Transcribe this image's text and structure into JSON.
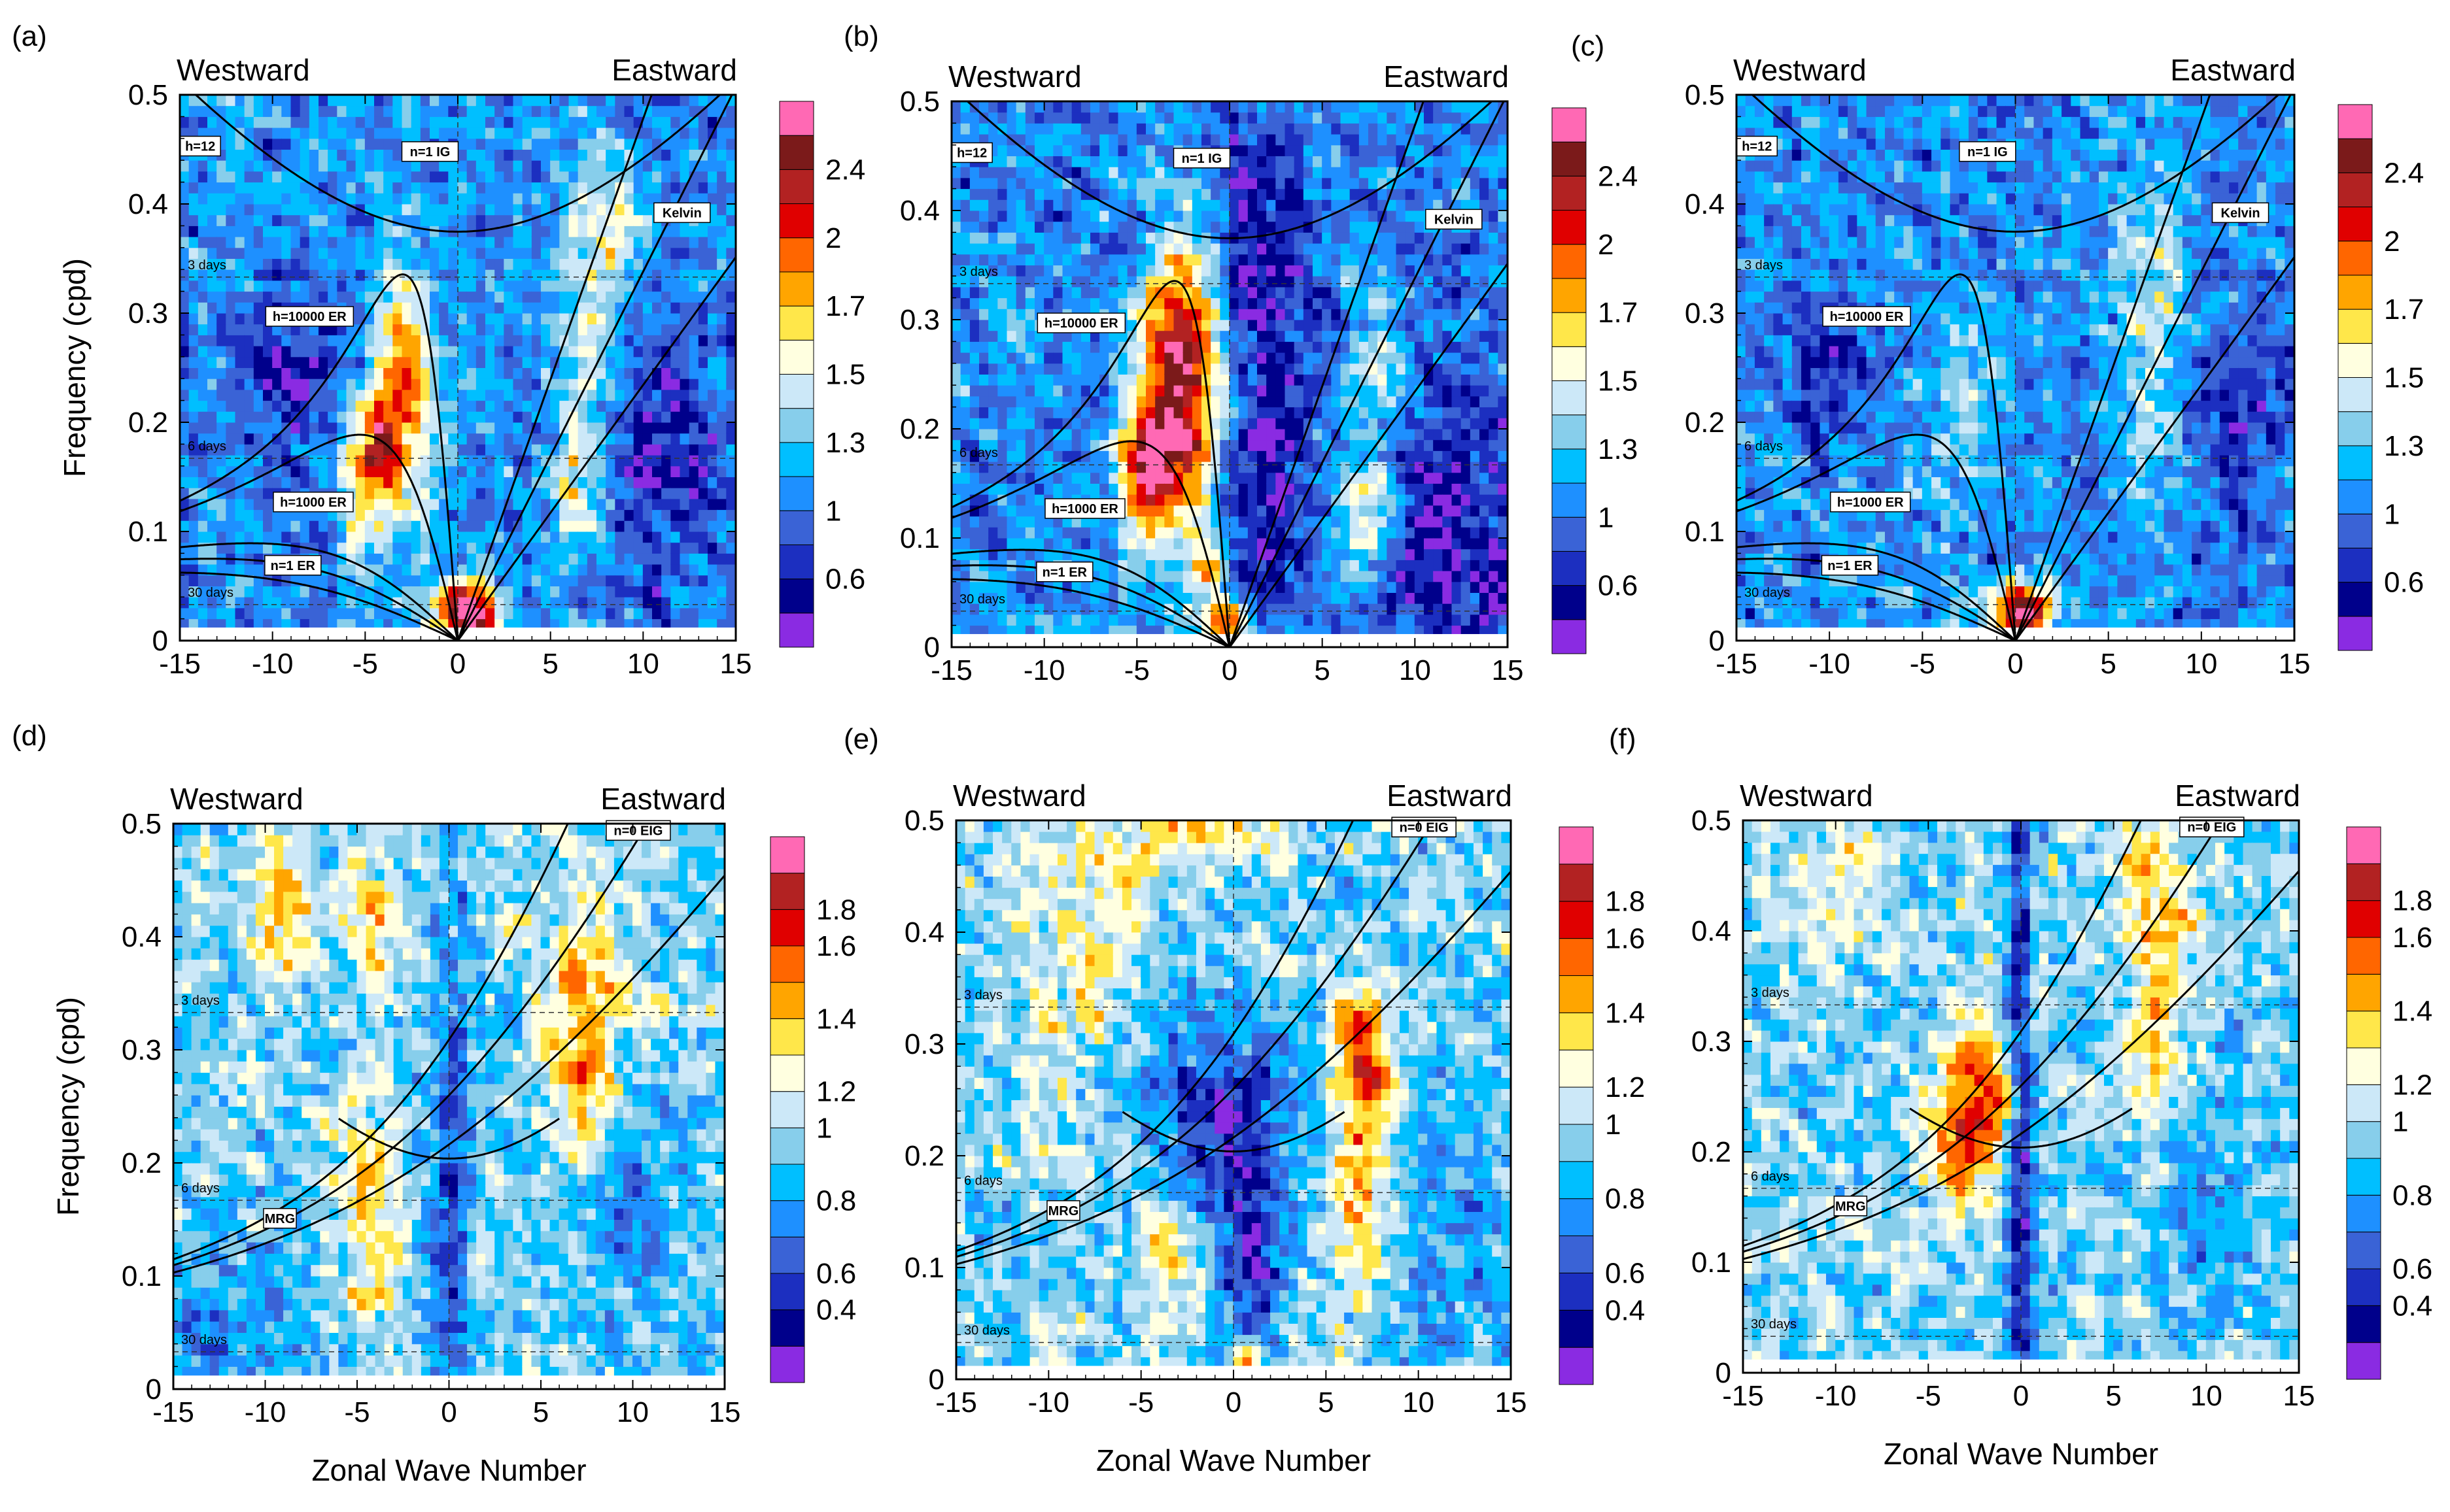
{
  "chart_data": [
    {
      "tag": "(a)",
      "type": "heatmap",
      "xlabel": "",
      "ylabel": "Frequency (cpd)",
      "xlim": [
        -15,
        15
      ],
      "ylim": [
        0,
        0.5
      ],
      "x_ticks": [
        "-15",
        "-10",
        "-5",
        "0",
        "5",
        "10",
        "15"
      ],
      "y_ticks": [
        "0",
        "0.1",
        "0.2",
        "0.3",
        "0.4",
        "0.5"
      ],
      "west_label": "Westward",
      "east_label": "Eastward",
      "curve_set": "symmetric",
      "curve_labels": [
        {
          "text": "h=12",
          "k": -13.9,
          "f": 0.453
        },
        {
          "text": "n=1 IG",
          "k": -1.5,
          "f": 0.448
        },
        {
          "text": "Kelvin",
          "k": 12.1,
          "f": 0.392
        },
        {
          "text": "h=10000 ER",
          "k": -8.0,
          "f": 0.297
        },
        {
          "text": "h=1000 ER",
          "k": -7.8,
          "f": 0.127
        },
        {
          "text": "n=1 ER",
          "k": -8.9,
          "f": 0.069
        }
      ],
      "period_lines": [
        {
          "text": "3 days",
          "f": 0.333
        },
        {
          "text": "6 days",
          "f": 0.167
        },
        {
          "text": "30 days",
          "f": 0.033
        }
      ],
      "colorbar_labels": [
        "0.6",
        "1",
        "1.3",
        "1.5",
        "1.7",
        "2",
        "2.4"
      ],
      "colorbar_colors": [
        "#8a2be2",
        "#00008b",
        "#1c2fc0",
        "#3a63d6",
        "#1e90ff",
        "#00bfff",
        "#87ceeb",
        "#cce8f8",
        "#ffffe0",
        "#ffe74a",
        "#ffa500",
        "#ff6600",
        "#e00000",
        "#b22222",
        "#7b1a1a",
        "#ff69b4"
      ],
      "background_level": 4,
      "blobs": [
        {
          "k": -3,
          "f": 0.23,
          "rk": 1.2,
          "rf": 0.07,
          "amp": 7.5
        },
        {
          "k": -4.6,
          "f": 0.16,
          "rk": 1.0,
          "rf": 0.04,
          "amp": 6.5
        },
        {
          "k": -5.5,
          "f": 0.1,
          "rk": 0.6,
          "rf": 0.02,
          "amp": 4
        },
        {
          "k": 8,
          "f": 0.38,
          "rk": 1.3,
          "rf": 0.05,
          "amp": 4
        },
        {
          "k": 7,
          "f": 0.25,
          "rk": 1.2,
          "rf": 0.08,
          "amp": 3
        },
        {
          "k": 6.4,
          "f": 0.13,
          "rk": 1.0,
          "rf": 0.05,
          "amp": 3
        },
        {
          "k": 0.5,
          "f": 0.025,
          "rk": 1.3,
          "rf": 0.02,
          "amp": 12
        },
        {
          "k": -9,
          "f": 0.25,
          "rk": 2,
          "rf": 0.05,
          "amp": -3
        },
        {
          "k": 11,
          "f": 0.17,
          "rk": 2.5,
          "rf": 0.08,
          "amp": -3
        }
      ]
    },
    {
      "tag": "(b)",
      "type": "heatmap",
      "xlabel": "",
      "ylabel": "",
      "xlim": [
        -15,
        15
      ],
      "ylim": [
        0,
        0.5
      ],
      "x_ticks": [
        "-15",
        "-10",
        "-5",
        "0",
        "5",
        "10",
        "15"
      ],
      "y_ticks": [
        "0",
        "0.1",
        "0.2",
        "0.3",
        "0.4",
        "0.5"
      ],
      "west_label": "Westward",
      "east_label": "Eastward",
      "curve_set": "symmetric",
      "curve_labels": [
        {
          "text": "h=12",
          "k": -13.9,
          "f": 0.453
        },
        {
          "text": "n=1 IG",
          "k": -1.5,
          "f": 0.448
        },
        {
          "text": "Kelvin",
          "k": 12.1,
          "f": 0.392
        },
        {
          "text": "h=10000 ER",
          "k": -8.0,
          "f": 0.297
        },
        {
          "text": "h=1000 ER",
          "k": -7.8,
          "f": 0.127
        },
        {
          "text": "n=1 ER",
          "k": -8.9,
          "f": 0.069
        }
      ],
      "period_lines": [
        {
          "text": "3 days",
          "f": 0.333
        },
        {
          "text": "6 days",
          "f": 0.167
        },
        {
          "text": "30 days",
          "f": 0.033
        }
      ],
      "colorbar_labels": [
        "0.6",
        "1",
        "1.3",
        "1.5",
        "1.7",
        "2",
        "2.4"
      ],
      "colorbar_colors": [
        "#8a2be2",
        "#00008b",
        "#1c2fc0",
        "#3a63d6",
        "#1e90ff",
        "#00bfff",
        "#87ceeb",
        "#cce8f8",
        "#ffffe0",
        "#ffe74a",
        "#ffa500",
        "#ff6600",
        "#e00000",
        "#b22222",
        "#7b1a1a",
        "#ff69b4"
      ],
      "background_level": 4,
      "blobs": [
        {
          "k": -2.5,
          "f": 0.24,
          "rk": 1.6,
          "rf": 0.09,
          "amp": 11
        },
        {
          "k": -4.5,
          "f": 0.16,
          "rk": 1.0,
          "rf": 0.04,
          "amp": 8
        },
        {
          "k": -1,
          "f": 0.07,
          "rk": 0.8,
          "rf": 0.03,
          "amp": 5
        },
        {
          "k": 1.5,
          "f": 0.25,
          "rk": 2.0,
          "rf": 0.2,
          "amp": -3.5
        },
        {
          "k": 12,
          "f": 0.1,
          "rk": 3,
          "rf": 0.12,
          "amp": -3
        },
        {
          "k": 7.5,
          "f": 0.12,
          "rk": 1,
          "rf": 0.04,
          "amp": 5
        },
        {
          "k": 8,
          "f": 0.26,
          "rk": 1,
          "rf": 0.06,
          "amp": 3
        },
        {
          "k": 0,
          "f": 0.02,
          "rk": 0.8,
          "rf": 0.015,
          "amp": 9
        }
      ]
    },
    {
      "tag": "(c)",
      "type": "heatmap",
      "xlabel": "",
      "ylabel": "",
      "xlim": [
        -15,
        15
      ],
      "ylim": [
        0,
        0.5
      ],
      "x_ticks": [
        "-15",
        "-10",
        "-5",
        "0",
        "5",
        "10",
        "15"
      ],
      "y_ticks": [
        "0",
        "0.1",
        "0.2",
        "0.3",
        "0.4",
        "0.5"
      ],
      "west_label": "Westward",
      "east_label": "Eastward",
      "curve_set": "symmetric",
      "curve_labels": [
        {
          "text": "h=12",
          "k": -13.9,
          "f": 0.453
        },
        {
          "text": "n=1 IG",
          "k": -1.5,
          "f": 0.448
        },
        {
          "text": "Kelvin",
          "k": 12.1,
          "f": 0.392
        },
        {
          "text": "h=10000 ER",
          "k": -8.0,
          "f": 0.297
        },
        {
          "text": "h=1000 ER",
          "k": -7.8,
          "f": 0.127
        },
        {
          "text": "n=1 ER",
          "k": -8.9,
          "f": 0.069
        }
      ],
      "period_lines": [
        {
          "text": "3 days",
          "f": 0.333
        },
        {
          "text": "6 days",
          "f": 0.167
        },
        {
          "text": "30 days",
          "f": 0.033
        }
      ],
      "colorbar_labels": [
        "0.6",
        "1",
        "1.3",
        "1.5",
        "1.7",
        "2",
        "2.4"
      ],
      "colorbar_colors": [
        "#8a2be2",
        "#00008b",
        "#1c2fc0",
        "#3a63d6",
        "#1e90ff",
        "#00bfff",
        "#87ceeb",
        "#cce8f8",
        "#ffffe0",
        "#ffe74a",
        "#ffa500",
        "#ff6600",
        "#e00000",
        "#b22222",
        "#7b1a1a",
        "#ff69b4"
      ],
      "background_level": 4,
      "blobs": [
        {
          "k": 7.5,
          "f": 0.3,
          "rk": 1.5,
          "rf": 0.12,
          "amp": 3
        },
        {
          "k": -3,
          "f": 0.22,
          "rk": 1.5,
          "rf": 0.08,
          "amp": 2
        },
        {
          "k": 0.3,
          "f": 0.025,
          "rk": 1.2,
          "rf": 0.018,
          "amp": 12
        },
        {
          "k": -10,
          "f": 0.25,
          "rk": 2,
          "rf": 0.05,
          "amp": -2.5
        },
        {
          "k": 12,
          "f": 0.2,
          "rk": 2,
          "rf": 0.08,
          "amp": -2
        }
      ]
    },
    {
      "tag": "(d)",
      "type": "heatmap",
      "xlabel": "Zonal Wave Number",
      "ylabel": "Frequency (cpd)",
      "xlim": [
        -15,
        15
      ],
      "ylim": [
        0,
        0.5
      ],
      "x_ticks": [
        "-15",
        "-10",
        "-5",
        "0",
        "5",
        "10",
        "15"
      ],
      "y_ticks": [
        "0",
        "0.1",
        "0.2",
        "0.3",
        "0.4",
        "0.5"
      ],
      "west_label": "Westward",
      "east_label": "Eastward",
      "curve_set": "antisymmetric",
      "curve_labels": [
        {
          "text": "n=0 EIG",
          "k": 10.3,
          "f": 0.494
        },
        {
          "text": "MRG",
          "k": -9.2,
          "f": 0.151
        }
      ],
      "period_lines": [
        {
          "text": "3 days",
          "f": 0.333
        },
        {
          "text": "6 days",
          "f": 0.167
        },
        {
          "text": "30 days",
          "f": 0.033
        }
      ],
      "colorbar_labels": [
        "0.4",
        "0.6",
        "0.8",
        "1",
        "1.2",
        "1.4",
        "1.6",
        "1.8"
      ],
      "colorbar_colors": [
        "#8a2be2",
        "#00008b",
        "#1c2fc0",
        "#3a63d6",
        "#1e90ff",
        "#00bfff",
        "#87ceeb",
        "#cce8f8",
        "#ffffe0",
        "#ffe74a",
        "#ffa500",
        "#ff6600",
        "#e00000",
        "#b22222",
        "#ff69b4"
      ],
      "background_level": 6,
      "blobs": [
        {
          "k": -9,
          "f": 0.43,
          "rk": 1,
          "rf": 0.04,
          "amp": 4
        },
        {
          "k": -4,
          "f": 0.42,
          "rk": 1,
          "rf": 0.04,
          "amp": 3
        },
        {
          "k": 7.5,
          "f": 0.37,
          "rk": 1.5,
          "rf": 0.04,
          "amp": 4
        },
        {
          "k": 7.5,
          "f": 0.28,
          "rk": 1.2,
          "rf": 0.04,
          "amp": 4
        },
        {
          "k": -4.5,
          "f": 0.15,
          "rk": 1.5,
          "rf": 0.08,
          "amp": 2.5
        },
        {
          "k": 0,
          "f": 0.15,
          "rk": 0.8,
          "rf": 0.2,
          "amp": -4
        },
        {
          "k": -12,
          "f": 0.05,
          "rk": 3,
          "rf": 0.06,
          "amp": -2
        },
        {
          "k": 10,
          "f": 0.15,
          "rk": 2,
          "rf": 0.08,
          "amp": -2
        }
      ]
    },
    {
      "tag": "(e)",
      "type": "heatmap",
      "xlabel": "Zonal Wave Number",
      "ylabel": "",
      "xlim": [
        -15,
        15
      ],
      "ylim": [
        0,
        0.5
      ],
      "x_ticks": [
        "-15",
        "-10",
        "-5",
        "0",
        "5",
        "10",
        "15"
      ],
      "y_ticks": [
        "0",
        "0.1",
        "0.2",
        "0.3",
        "0.4",
        "0.5"
      ],
      "west_label": "Westward",
      "east_label": "Eastward",
      "curve_set": "antisymmetric",
      "curve_labels": [
        {
          "text": "n=0 EIG",
          "k": 10.3,
          "f": 0.494
        },
        {
          "text": "MRG",
          "k": -9.2,
          "f": 0.151
        }
      ],
      "period_lines": [
        {
          "text": "3 days",
          "f": 0.333
        },
        {
          "text": "6 days",
          "f": 0.167
        },
        {
          "text": "30 days",
          "f": 0.033
        }
      ],
      "colorbar_labels": [
        "0.4",
        "0.6",
        "0.8",
        "1",
        "1.2",
        "1.4",
        "1.6",
        "1.8"
      ],
      "colorbar_colors": [
        "#8a2be2",
        "#00008b",
        "#1c2fc0",
        "#3a63d6",
        "#1e90ff",
        "#00bfff",
        "#87ceeb",
        "#cce8f8",
        "#ffffe0",
        "#ffe74a",
        "#ffa500",
        "#ff6600",
        "#e00000",
        "#b22222",
        "#ff69b4"
      ],
      "background_level": 6,
      "blobs": [
        {
          "k": -2,
          "f": 0.49,
          "rk": 3,
          "rf": 0.02,
          "amp": 3
        },
        {
          "k": -1,
          "f": 0.23,
          "rk": 3,
          "rf": 0.08,
          "amp": -4.5
        },
        {
          "k": 1,
          "f": 0.08,
          "rk": 1,
          "rf": 0.08,
          "amp": -4
        },
        {
          "k": 7,
          "f": 0.28,
          "rk": 1.2,
          "rf": 0.05,
          "amp": 6
        },
        {
          "k": 6.5,
          "f": 0.15,
          "rk": 1,
          "rf": 0.06,
          "amp": 3
        },
        {
          "k": -3.5,
          "f": 0.12,
          "rk": 1.2,
          "rf": 0.05,
          "amp": 3.5
        },
        {
          "k": 1,
          "f": 0.02,
          "rk": 0.5,
          "rf": 0.015,
          "amp": 8
        },
        {
          "k": -8,
          "f": 0.4,
          "rk": 3,
          "rf": 0.1,
          "amp": 2
        },
        {
          "k": 12,
          "f": 0.12,
          "rk": 2,
          "rf": 0.1,
          "amp": -2
        }
      ]
    },
    {
      "tag": "(f)",
      "type": "heatmap",
      "xlabel": "Zonal Wave Number",
      "ylabel": "",
      "xlim": [
        -15,
        15
      ],
      "ylim": [
        0,
        0.5
      ],
      "x_ticks": [
        "-15",
        "-10",
        "-5",
        "0",
        "5",
        "10",
        "15"
      ],
      "y_ticks": [
        "0",
        "0.1",
        "0.2",
        "0.3",
        "0.4",
        "0.5"
      ],
      "west_label": "Westward",
      "east_label": "Eastward",
      "curve_set": "antisymmetric",
      "curve_labels": [
        {
          "text": "n=0 EIG",
          "k": 10.3,
          "f": 0.494
        },
        {
          "text": "MRG",
          "k": -9.2,
          "f": 0.151
        }
      ],
      "period_lines": [
        {
          "text": "3 days",
          "f": 0.333
        },
        {
          "text": "6 days",
          "f": 0.167
        },
        {
          "text": "30 days",
          "f": 0.033
        }
      ],
      "colorbar_labels": [
        "0.4",
        "0.6",
        "0.8",
        "1",
        "1.2",
        "1.4",
        "1.6",
        "1.8"
      ],
      "colorbar_colors": [
        "#8a2be2",
        "#00008b",
        "#1c2fc0",
        "#3a63d6",
        "#1e90ff",
        "#00bfff",
        "#87ceeb",
        "#cce8f8",
        "#ffffe0",
        "#ffe74a",
        "#ffa500",
        "#ff6600",
        "#e00000",
        "#b22222",
        "#ff69b4"
      ],
      "background_level": 6,
      "blobs": [
        {
          "k": -2,
          "f": 0.25,
          "rk": 1.3,
          "rf": 0.05,
          "amp": 5
        },
        {
          "k": -3.5,
          "f": 0.21,
          "rk": 1.3,
          "rf": 0.04,
          "amp": 3
        },
        {
          "k": 7.5,
          "f": 0.42,
          "rk": 1.5,
          "rf": 0.06,
          "amp": 3
        },
        {
          "k": 7,
          "f": 0.28,
          "rk": 1.2,
          "rf": 0.06,
          "amp": 2
        },
        {
          "k": 0,
          "f": 0.25,
          "rk": 0.5,
          "rf": 0.3,
          "amp": -5
        },
        {
          "k": -10,
          "f": 0.45,
          "rk": 2,
          "rf": 0.05,
          "amp": 2
        },
        {
          "k": 10,
          "f": 0.15,
          "rk": 2,
          "rf": 0.08,
          "amp": -2
        }
      ]
    }
  ]
}
